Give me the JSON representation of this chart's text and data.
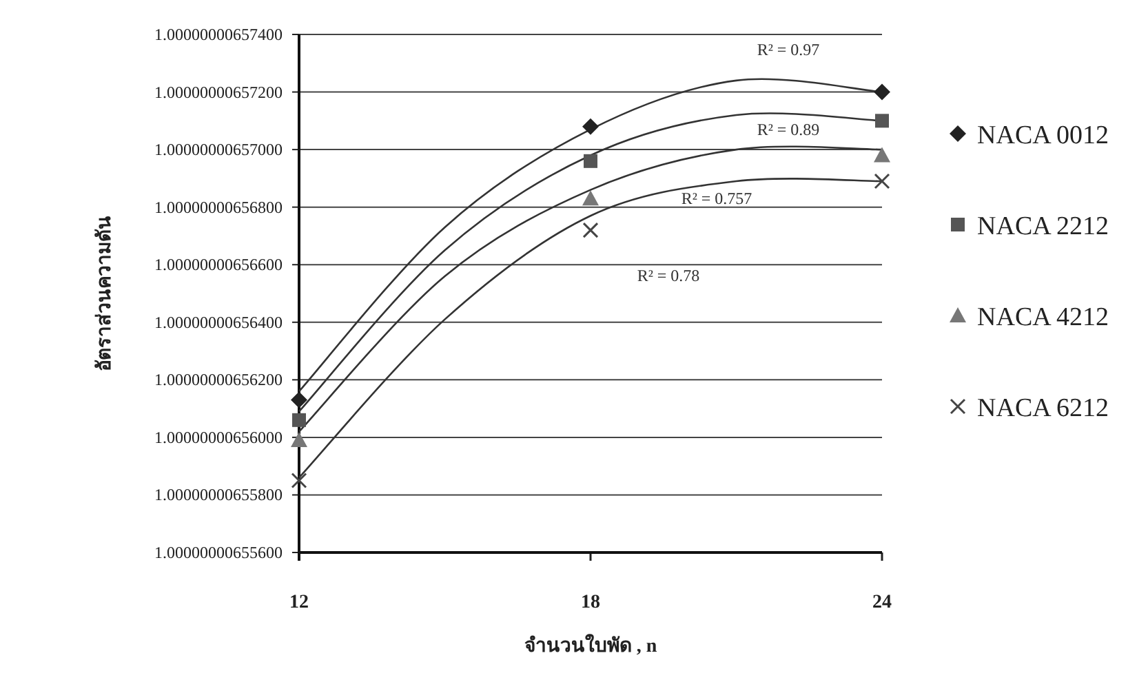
{
  "chart_data": {
    "type": "scatter",
    "xlabel": "จำนวนใบพัด , n",
    "ylabel": "อัตราส่วนความดัน",
    "xlim": [
      12,
      24
    ],
    "xticks": [
      12,
      18,
      24
    ],
    "ylim": [
      1.000000006556,
      1.000000006574
    ],
    "yticks": [
      {
        "value": 1.000000006556,
        "label": "1.00000000655600"
      },
      {
        "value": 1.000000006558,
        "label": "1.00000000655800"
      },
      {
        "value": 1.00000000656,
        "label": "1.00000000656000"
      },
      {
        "value": 1.000000006562,
        "label": "1.00000000656200"
      },
      {
        "value": 1.000000006564,
        "label": "1.00000000656400"
      },
      {
        "value": 1.000000006566,
        "label": "1.00000000656600"
      },
      {
        "value": 1.000000006568,
        "label": "1.00000000656800"
      },
      {
        "value": 1.00000000657,
        "label": "1.00000000657000"
      },
      {
        "value": 1.000000006572,
        "label": "1.00000000657200"
      },
      {
        "value": 1.000000006574,
        "label": "1.00000000657400"
      }
    ],
    "grid": "y",
    "legend": "right",
    "series": [
      {
        "name": "NACA 0012",
        "color": "#222222",
        "marker": "diamond",
        "x": [
          12,
          18,
          24
        ],
        "values": [
          1.0000000065613,
          1.0000000065708,
          1.000000006572
        ]
      },
      {
        "name": "NACA 2212",
        "color": "#555555",
        "marker": "square",
        "x": [
          12,
          18,
          24
        ],
        "values": [
          1.0000000065606,
          1.0000000065696,
          1.000000006571
        ]
      },
      {
        "name": "NACA 4212",
        "color": "#777777",
        "marker": "triangle",
        "x": [
          12,
          18,
          24
        ],
        "values": [
          1.0000000065599,
          1.0000000065683,
          1.0000000065698
        ]
      },
      {
        "name": "NACA 6212",
        "color": "#444444",
        "marker": "cross",
        "x": [
          12,
          18,
          24
        ],
        "values": [
          1.0000000065585,
          1.0000000065672,
          1.0000000065689
        ]
      },
      {
        "type": "line",
        "color": "#333333",
        "marker": "none",
        "x": [
          12,
          15,
          18,
          21,
          24
        ],
        "values": [
          1.0000000065616,
          1.0000000065673,
          1.0000000065707,
          1.0000000065724,
          1.000000006572
        ]
      },
      {
        "type": "line",
        "color": "#333333",
        "marker": "none",
        "x": [
          12,
          15,
          18,
          21,
          24
        ],
        "values": [
          1.0000000065609,
          1.0000000065665,
          1.0000000065698,
          1.0000000065712,
          1.000000006571
        ]
      },
      {
        "type": "line",
        "color": "#333333",
        "marker": "none",
        "x": [
          12,
          15,
          18,
          21,
          24
        ],
        "values": [
          1.0000000065602,
          1.0000000065656,
          1.0000000065686,
          1.00000000657,
          1.00000000657
        ]
      },
      {
        "type": "line",
        "color": "#333333",
        "marker": "none",
        "x": [
          12,
          15,
          18,
          21,
          24
        ],
        "values": [
          1.0000000065586,
          1.0000000065641,
          1.0000000065677,
          1.0000000065689,
          1.0000000065689
        ]
      }
    ],
    "annotations": [
      "R² = 0.97",
      "R² = 0.89",
      "R² = 0.757",
      "R² = 0.78"
    ]
  }
}
